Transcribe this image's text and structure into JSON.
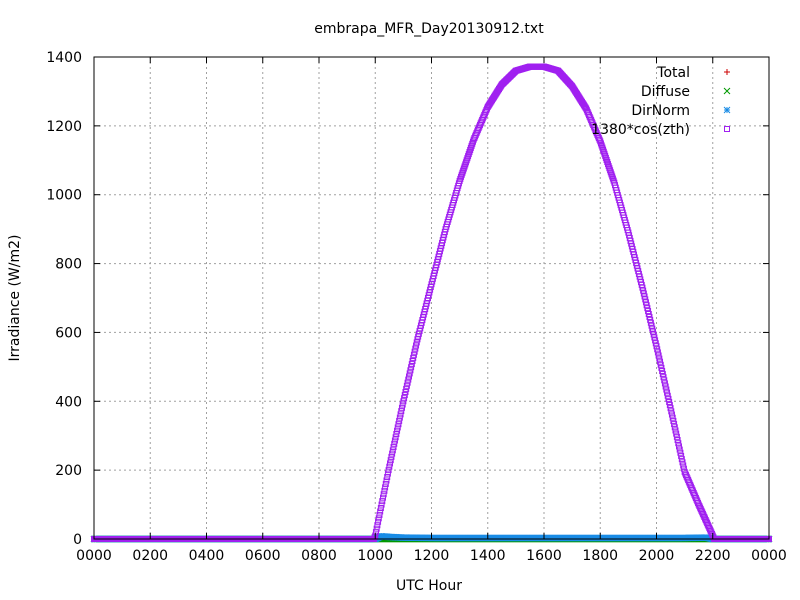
{
  "chart_data": {
    "type": "scatter",
    "title": "embrapa_MFR_Day20130912.txt",
    "xlabel": "UTC Hour",
    "ylabel": "Irradiance (W/m2)",
    "xlim": [
      0,
      24
    ],
    "ylim": [
      0,
      1400
    ],
    "x_ticks": [
      {
        "value": 0,
        "label": "0000"
      },
      {
        "value": 2,
        "label": "0200"
      },
      {
        "value": 4,
        "label": "0400"
      },
      {
        "value": 6,
        "label": "0600"
      },
      {
        "value": 8,
        "label": "0800"
      },
      {
        "value": 10,
        "label": "1000"
      },
      {
        "value": 12,
        "label": "1200"
      },
      {
        "value": 14,
        "label": "1400"
      },
      {
        "value": 16,
        "label": "1600"
      },
      {
        "value": 18,
        "label": "1800"
      },
      {
        "value": 20,
        "label": "2000"
      },
      {
        "value": 22,
        "label": "2200"
      },
      {
        "value": 24,
        "label": "0000"
      }
    ],
    "y_ticks": [
      0,
      200,
      400,
      600,
      800,
      1000,
      1200,
      1400
    ],
    "grid": true,
    "legend_position": "top-right",
    "series": [
      {
        "name": "Total",
        "marker": "plus",
        "color": "#cc0000",
        "x": [
          0,
          24
        ],
        "y": [
          0,
          0
        ]
      },
      {
        "name": "Diffuse",
        "marker": "cross",
        "color": "#009900",
        "x": [
          0,
          24
        ],
        "y": [
          0,
          0
        ]
      },
      {
        "name": "DirNorm",
        "marker": "star",
        "color": "#1a8ce6",
        "x": [
          0,
          10,
          10.2,
          10.5,
          11,
          12,
          13,
          14,
          15,
          16,
          17,
          18,
          19,
          20,
          21,
          21.8,
          22,
          24
        ],
        "y": [
          0,
          0,
          8,
          6,
          4,
          3,
          3,
          3,
          3,
          3,
          3,
          3,
          3,
          3,
          3,
          4,
          0,
          0
        ]
      },
      {
        "name": "1380*cos(zth)",
        "marker": "square",
        "color": "#a020f0",
        "x": [
          0,
          9.95,
          10,
          10.5,
          11,
          11.5,
          12,
          12.5,
          13,
          13.5,
          14,
          14.5,
          15,
          15.5,
          16,
          16.5,
          17,
          17.5,
          18,
          18.5,
          19,
          19.5,
          20,
          20.5,
          21,
          21.5,
          22,
          22.05,
          24
        ],
        "y": [
          0,
          0,
          10,
          210,
          400,
          580,
          740,
          900,
          1040,
          1160,
          1255,
          1320,
          1360,
          1372,
          1372,
          1360,
          1315,
          1250,
          1155,
          1035,
          890,
          730,
          560,
          380,
          195,
          100,
          10,
          0,
          0
        ]
      }
    ]
  }
}
